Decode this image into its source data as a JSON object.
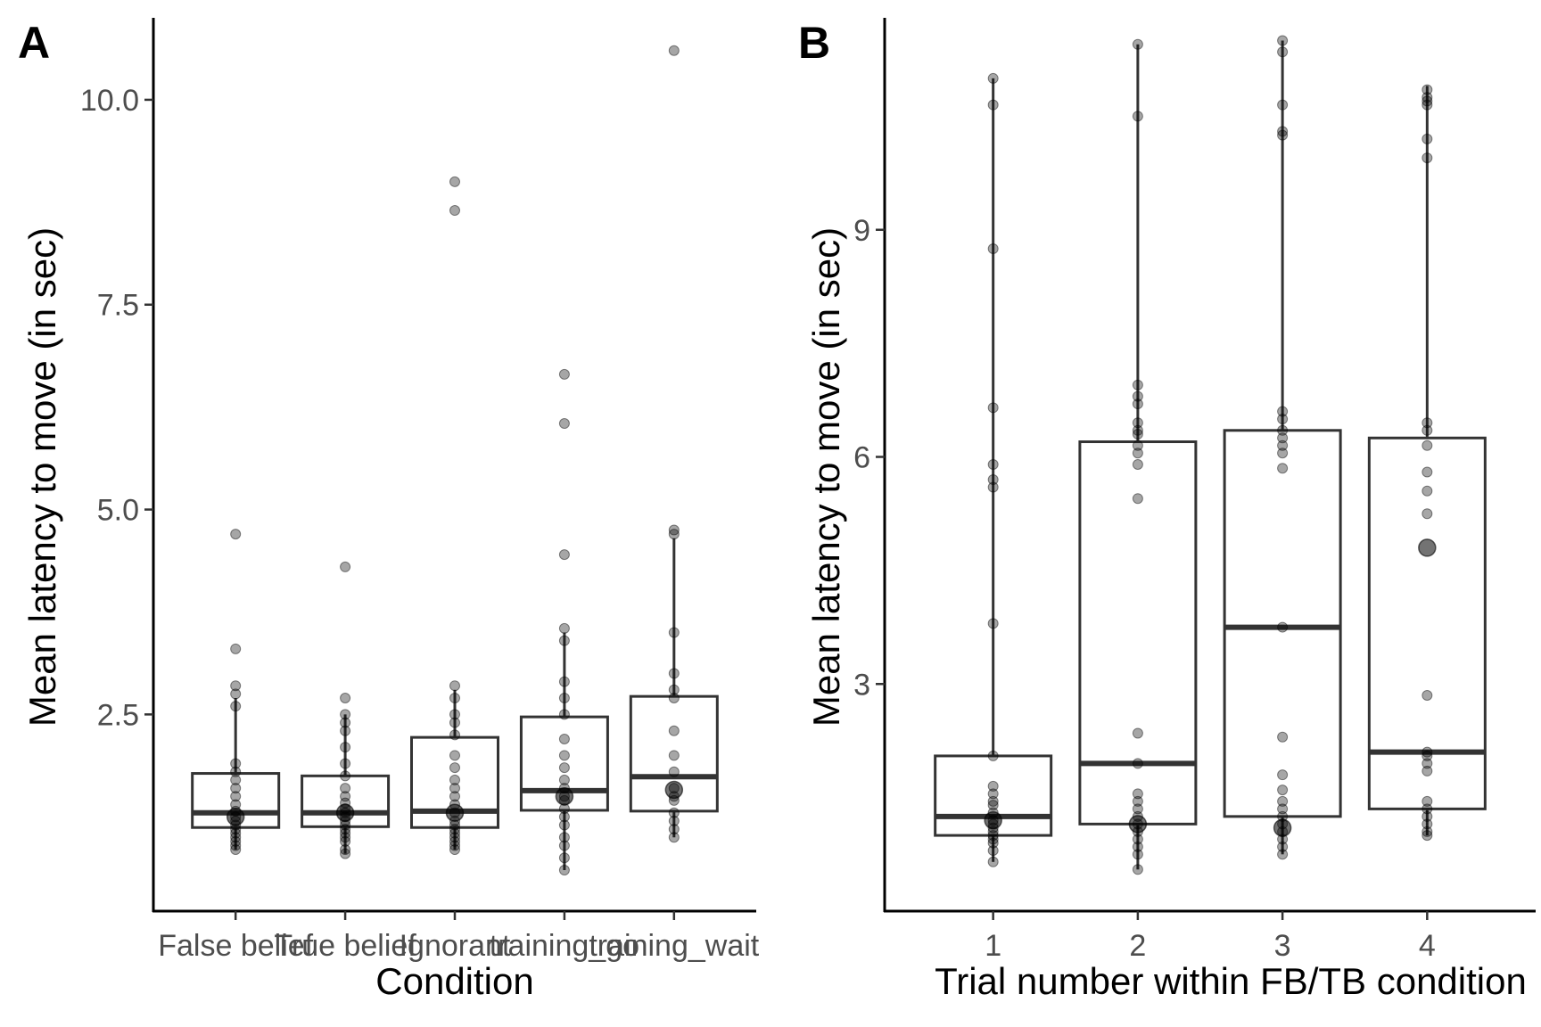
{
  "chart_data": [
    {
      "type": "box",
      "panel_label": "A",
      "xlabel": "Condition",
      "ylabel": "Mean latency to move (in sec)",
      "ylim": [
        0.1,
        11.0
      ],
      "yticks": [
        2.5,
        5.0,
        7.5,
        10.0
      ],
      "ytick_labels": [
        "2.5",
        "5.0",
        "7.5",
        "10.0"
      ],
      "categories": [
        "False belief",
        "True belief",
        "Ignorant",
        "training_go",
        "training_wait"
      ],
      "boxes": [
        {
          "q1": 1.12,
          "median": 1.3,
          "q3": 1.78,
          "whisker_low": 0.85,
          "whisker_high": 2.7
        },
        {
          "q1": 1.13,
          "median": 1.3,
          "q3": 1.75,
          "whisker_low": 0.8,
          "whisker_high": 2.5
        },
        {
          "q1": 1.12,
          "median": 1.32,
          "q3": 2.22,
          "whisker_low": 0.85,
          "whisker_high": 2.8
        },
        {
          "q1": 1.33,
          "median": 1.57,
          "q3": 2.47,
          "whisker_low": 0.6,
          "whisker_high": 3.5
        },
        {
          "q1": 1.32,
          "median": 1.74,
          "q3": 2.72,
          "whisker_low": 1.0,
          "whisker_high": 4.65
        }
      ],
      "points": [
        [
          4.7,
          3.3,
          2.85,
          2.75,
          2.6,
          1.9,
          1.8,
          1.7,
          1.6,
          1.5,
          1.4,
          1.32,
          1.25,
          1.2,
          1.15,
          1.1,
          1.05,
          1.0,
          0.95,
          0.9,
          0.85
        ],
        [
          4.3,
          2.7,
          2.5,
          2.4,
          2.3,
          2.1,
          1.9,
          1.75,
          1.6,
          1.5,
          1.42,
          1.35,
          1.3,
          1.25,
          1.2,
          1.15,
          1.1,
          1.05,
          1.0,
          0.95,
          0.85,
          0.8
        ],
        [
          9.0,
          8.65,
          2.85,
          2.7,
          2.5,
          2.4,
          2.25,
          2.0,
          1.85,
          1.7,
          1.6,
          1.5,
          1.4,
          1.3,
          1.2,
          1.15,
          1.1,
          1.05,
          1.0,
          0.95,
          0.9,
          0.85
        ],
        [
          6.65,
          6.05,
          4.45,
          3.55,
          3.4,
          2.9,
          2.7,
          2.5,
          2.2,
          2.0,
          1.85,
          1.7,
          1.6,
          1.5,
          1.45,
          1.35,
          1.25,
          1.15,
          1.0,
          0.9,
          0.75,
          0.6
        ],
        [
          10.6,
          4.75,
          4.7,
          3.5,
          3.0,
          2.8,
          2.7,
          2.3,
          2.0,
          1.8,
          1.6,
          1.5,
          1.45,
          1.3,
          1.2,
          1.1,
          1.0
        ]
      ],
      "means": [
        1.25,
        1.3,
        1.3,
        1.5,
        1.58
      ]
    },
    {
      "type": "box",
      "panel_label": "B",
      "xlabel": "Trial number within FB/TB condition",
      "ylabel": "Mean latency to move (in sec)",
      "ylim": [
        0.0,
        11.8
      ],
      "yticks": [
        3,
        6,
        9
      ],
      "ytick_labels": [
        "3",
        "6",
        "9"
      ],
      "categories": [
        "1",
        "2",
        "3",
        "4"
      ],
      "boxes": [
        {
          "q1": 1.0,
          "median": 1.25,
          "q3": 2.05,
          "whisker_low": 0.65,
          "whisker_high": 11.0
        },
        {
          "q1": 1.15,
          "median": 1.95,
          "q3": 6.2,
          "whisker_low": 0.55,
          "whisker_high": 11.45
        },
        {
          "q1": 1.25,
          "median": 3.75,
          "q3": 6.35,
          "whisker_low": 0.75,
          "whisker_high": 11.5
        },
        {
          "q1": 1.35,
          "median": 2.1,
          "q3": 6.25,
          "whisker_low": 1.0,
          "whisker_high": 10.9
        }
      ],
      "points": [
        [
          11.0,
          10.65,
          8.75,
          6.65,
          5.9,
          5.7,
          5.6,
          3.8,
          2.05,
          1.65,
          1.55,
          1.45,
          1.4,
          1.3,
          1.2,
          1.15,
          1.1,
          1.05,
          1.0,
          0.95,
          0.9,
          0.8,
          0.65
        ],
        [
          11.45,
          10.5,
          6.95,
          6.8,
          6.7,
          6.45,
          6.35,
          6.3,
          6.15,
          6.05,
          5.9,
          5.45,
          2.35,
          1.95,
          1.55,
          1.45,
          1.35,
          1.25,
          1.15,
          1.05,
          0.95,
          0.85,
          0.75,
          0.55
        ],
        [
          11.5,
          11.35,
          10.65,
          10.3,
          10.25,
          6.6,
          6.5,
          6.35,
          6.25,
          6.15,
          6.05,
          5.85,
          3.75,
          2.3,
          1.8,
          1.6,
          1.45,
          1.35,
          1.25,
          1.15,
          1.05,
          0.95,
          0.85,
          0.75
        ],
        [
          10.85,
          10.75,
          10.7,
          10.65,
          10.2,
          9.95,
          6.45,
          6.35,
          6.15,
          5.8,
          5.55,
          5.25,
          2.85,
          2.1,
          2.05,
          1.95,
          1.85,
          1.45,
          1.35,
          1.25,
          1.15,
          1.05,
          1.0
        ]
      ],
      "means": [
        1.2,
        1.15,
        1.1,
        4.8
      ]
    }
  ]
}
